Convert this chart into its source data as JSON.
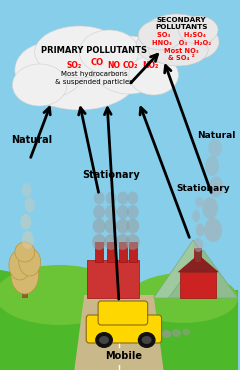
{
  "bg_sky": "#87CEEB",
  "bg_ground": "#5cb82e",
  "primary_cloud_color": "#f2f2f2",
  "secondary_cloud_color": "#e0e0e0",
  "primary_label": "PRIMARY POLLUTANTS",
  "primary_chem": "SO₂  CO  NO  CO₂  NO₂",
  "primary_sub": "Most hydrocarbons\n& suspended particles",
  "sec_label": "SECONDARY\nPOLLUTANTS",
  "sec_line1": "SO₃      H₂SO₄",
  "sec_line2": "HNO₃   O₃     H₂O₂",
  "sec_line3": "Most NO₃",
  "sec_line4": "& SO₄ ²",
  "smoke_color": "#aaaaaa",
  "factory_color": "#cc3333",
  "house_color": "#aa2222",
  "car_color": "#FFD700",
  "tree_color": "#d4b870",
  "ground_green": "#4db82a",
  "hill_green": "#6ac435",
  "mountain_color": "#8fbc8f"
}
